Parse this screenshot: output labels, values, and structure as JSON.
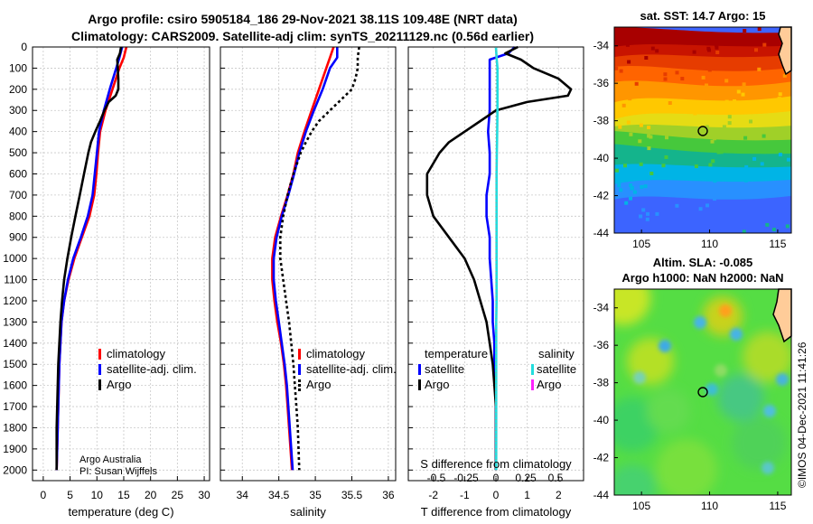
{
  "title": {
    "line1": "Argo profile: csiro 5905184_186 29-Nov-2021 38.11S 109.48E (NRT data)",
    "line2": "Climatology: CARS2009. Satellite-adj clim: synTS_20211129.nc (0.56d earlier)"
  },
  "colors": {
    "climatology": "#ff0000",
    "satellite": "#0000ff",
    "argo": "#000000",
    "sat_salinity": "#22dddd",
    "argo_salinity": "#ff22ff",
    "land": "#ffcc99"
  },
  "chart_data": [
    {
      "type": "line",
      "id": "temperature",
      "xlabel": "temperature (deg C)",
      "ylabel": "",
      "xlim": [
        -2,
        31
      ],
      "ylim": [
        2050,
        0
      ],
      "xticks": [
        "0",
        "5",
        "10",
        "15",
        "20",
        "25",
        "30"
      ],
      "yticks": [
        "0",
        "100",
        "200",
        "300",
        "400",
        "500",
        "600",
        "700",
        "800",
        "900",
        "1000",
        "1100",
        "1200",
        "1300",
        "1400",
        "1500",
        "1600",
        "1700",
        "1800",
        "1900",
        "2000"
      ],
      "series": [
        {
          "name": "climatology",
          "color": "#ff0000",
          "dash": "",
          "depth": [
            0,
            50,
            100,
            200,
            300,
            400,
            500,
            600,
            700,
            800,
            900,
            1000,
            1100,
            1200,
            1300,
            1400,
            1500,
            1600,
            1700,
            1800,
            1900,
            2000
          ],
          "values": [
            15.5,
            15.0,
            14.2,
            12.9,
            11.6,
            10.6,
            10.2,
            9.9,
            9.5,
            8.6,
            7.2,
            5.8,
            4.7,
            3.9,
            3.4,
            3.2,
            3.0,
            2.9,
            2.8,
            2.7,
            2.6,
            2.5
          ]
        },
        {
          "name": "satellite-adj. clim.",
          "color": "#0000ff",
          "dash": "",
          "depth": [
            0,
            50,
            100,
            200,
            300,
            400,
            500,
            600,
            700,
            800,
            900,
            1000,
            1100,
            1200,
            1300,
            1400,
            1500,
            1600,
            1700,
            1800,
            1900,
            2000
          ],
          "values": [
            14.7,
            14.2,
            13.6,
            12.4,
            11.3,
            10.4,
            10.0,
            9.6,
            9.2,
            8.3,
            7.0,
            5.6,
            4.6,
            3.9,
            3.4,
            3.2,
            3.0,
            2.9,
            2.8,
            2.7,
            2.6,
            2.5
          ]
        },
        {
          "name": "Argo",
          "color": "#000000",
          "dash": "",
          "depth": [
            0,
            30,
            60,
            100,
            150,
            200,
            230,
            260,
            300,
            350,
            400,
            450,
            500,
            600,
            700,
            800,
            900,
            1000,
            1100,
            1200,
            1300,
            1400,
            1500,
            1600,
            1700,
            1800,
            1900,
            2000
          ],
          "values": [
            14.5,
            14.3,
            13.8,
            13.9,
            14.0,
            14.0,
            13.5,
            12.2,
            11.4,
            10.6,
            9.7,
            8.9,
            8.4,
            7.6,
            6.8,
            6.0,
            5.2,
            4.5,
            3.9,
            3.5,
            3.2,
            3.0,
            2.8,
            2.7,
            2.6,
            2.5,
            2.5,
            2.5
          ]
        }
      ],
      "legend": [
        "climatology",
        "satellite-adj. clim.",
        "Argo"
      ],
      "annotation": [
        "Argo Australia",
        "PI: Susan Wijffels"
      ]
    },
    {
      "type": "line",
      "id": "salinity",
      "xlabel": "salinity",
      "xlim": [
        33.7,
        36.1
      ],
      "ylim": [
        2050,
        0
      ],
      "xticks": [
        "34",
        "34.5",
        "35",
        "35.5",
        "36"
      ],
      "series": [
        {
          "name": "climatology",
          "color": "#ff0000",
          "dash": "",
          "depth": [
            0,
            50,
            100,
            200,
            300,
            400,
            500,
            600,
            700,
            800,
            900,
            1000,
            1100,
            1200,
            1300,
            1400,
            1500,
            1600,
            1700,
            1800,
            1900,
            2000
          ],
          "values": [
            35.25,
            35.2,
            35.15,
            35.05,
            34.95,
            34.85,
            34.76,
            34.7,
            34.62,
            34.53,
            34.45,
            34.41,
            34.41,
            34.44,
            34.48,
            34.53,
            34.57,
            34.6,
            34.62,
            34.64,
            34.66,
            34.68
          ]
        },
        {
          "name": "satellite-adj. clim.",
          "color": "#0000ff",
          "dash": "",
          "depth": [
            0,
            50,
            100,
            200,
            300,
            400,
            500,
            600,
            700,
            800,
            900,
            1000,
            1100,
            1200,
            1300,
            1400,
            1500,
            1600,
            1700,
            1800,
            1900,
            2000
          ],
          "values": [
            35.3,
            35.3,
            35.2,
            35.1,
            34.98,
            34.87,
            34.78,
            34.71,
            34.63,
            34.54,
            34.47,
            34.43,
            34.43,
            34.46,
            34.5,
            34.54,
            34.58,
            34.61,
            34.63,
            34.65,
            34.67,
            34.69
          ]
        },
        {
          "name": "Argo",
          "color": "#000000",
          "dash": "3,3",
          "depth": [
            0,
            50,
            100,
            150,
            200,
            250,
            300,
            350,
            400,
            450,
            500,
            600,
            700,
            800,
            900,
            1000,
            1100,
            1200,
            1300,
            1400,
            1500,
            1600,
            1700,
            1800,
            1900,
            2000
          ],
          "values": [
            35.6,
            35.58,
            35.58,
            35.55,
            35.5,
            35.35,
            35.2,
            35.05,
            34.95,
            34.87,
            34.8,
            34.7,
            34.62,
            34.56,
            34.52,
            34.52,
            34.56,
            34.6,
            34.64,
            34.67,
            34.7,
            34.72,
            34.74,
            34.76,
            34.77,
            34.78
          ]
        }
      ],
      "legend": [
        "climatology",
        "satellite-adj. clim.",
        "Argo"
      ]
    },
    {
      "type": "line",
      "id": "difference",
      "xlabel": "T difference from climatology",
      "xlabel_top": "S difference from climatology",
      "xlim": [
        -2.8,
        2.8
      ],
      "ylim": [
        2050,
        0
      ],
      "xticks": [
        "-2",
        "-1",
        "0",
        "1",
        "2"
      ],
      "sticks": [
        "-0.5",
        "-0.25",
        "0",
        "0.25",
        "0.5"
      ],
      "series": [
        {
          "name": "temperature satellite",
          "color": "#0000ff",
          "dash": "",
          "depth": [
            0,
            30,
            60,
            100,
            200,
            300,
            400,
            500,
            600,
            700,
            800,
            900,
            1000,
            1100,
            1200,
            1300,
            1400,
            1500,
            1600,
            1700,
            1800,
            1900,
            2000
          ],
          "values": [
            0.6,
            0.4,
            -0.2,
            -0.2,
            -0.2,
            -0.2,
            -0.25,
            -0.2,
            -0.2,
            -0.3,
            -0.3,
            -0.2,
            -0.2,
            -0.15,
            -0.1,
            -0.1,
            -0.05,
            -0.05,
            0,
            0,
            0,
            0,
            0
          ]
        },
        {
          "name": "temperature Argo",
          "color": "#000000",
          "dash": "",
          "depth": [
            0,
            30,
            60,
            100,
            150,
            200,
            230,
            260,
            300,
            350,
            400,
            450,
            500,
            600,
            700,
            800,
            900,
            1000,
            1100,
            1200,
            1300,
            1400,
            1500,
            1600,
            1700,
            1800,
            1900,
            2000
          ],
          "values": [
            0.7,
            0.3,
            0.8,
            1.2,
            2.0,
            2.4,
            2.3,
            1.0,
            0.0,
            -0.5,
            -1.0,
            -1.5,
            -1.8,
            -2.2,
            -2.2,
            -2.0,
            -1.5,
            -1.0,
            -0.7,
            -0.5,
            -0.3,
            -0.2,
            -0.1,
            -0.05,
            0,
            0,
            0,
            0
          ]
        },
        {
          "name": "salinity satellite",
          "color": "#22dddd",
          "dash": "",
          "depth": [
            0,
            50,
            100,
            200,
            300,
            400,
            500,
            600,
            700,
            800,
            900,
            1000,
            1100,
            1200,
            1300,
            1400,
            1500,
            1600,
            1700,
            1800,
            1900,
            2000
          ],
          "values": [
            0,
            0.02,
            0.05,
            0.05,
            0.05,
            0.04,
            0.03,
            0.02,
            0.02,
            0.02,
            0.02,
            0.02,
            0.02,
            0.02,
            0.01,
            0.01,
            0.01,
            0.01,
            0.01,
            0.01,
            0.01,
            0.01
          ]
        }
      ],
      "legend_left_title": "temperature",
      "legend_right_title": "salinity",
      "legend_left": [
        "satellite",
        "Argo"
      ],
      "legend_right": [
        "satellite",
        "Argo"
      ]
    },
    {
      "type": "heatmap",
      "id": "sst-map",
      "title": "sat. SST: 14.7 Argo: 15",
      "xticks": [
        "105",
        "110",
        "115"
      ],
      "yticks": [
        "-34",
        "-36",
        "-38",
        "-40",
        "-42",
        "-44"
      ],
      "xlim": [
        103,
        116
      ],
      "ylim": [
        -44,
        -33
      ]
    },
    {
      "type": "heatmap",
      "id": "sla-map",
      "title1": "Altim. SLA: -0.085",
      "title2": "Argo h1000: NaN h2000: NaN",
      "xticks": [
        "105",
        "110",
        "115"
      ],
      "yticks": [
        "-34",
        "-36",
        "-38",
        "-40",
        "-42",
        "-44"
      ],
      "xlim": [
        103,
        116
      ],
      "ylim": [
        -44,
        -33
      ]
    }
  ],
  "credit": "©IMOS 04-Dec-2021 11:41:26"
}
